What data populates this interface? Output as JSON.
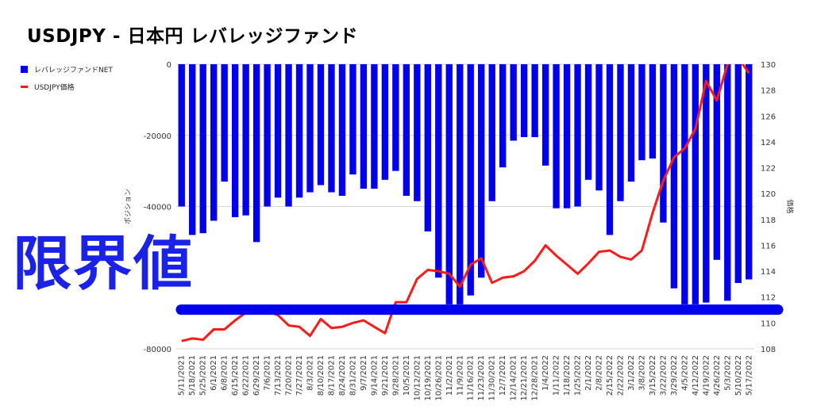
{
  "title": "USDJPY - 日本円 レバレッジファンド",
  "annotation": "限界値",
  "colors": {
    "net_bars": "#0000ee",
    "price_line": "#ff1a1a",
    "limit_line": "#0000ee"
  },
  "chart_data": {
    "type": "bar",
    "title": "USDJPY - 日本円 レバレッジファンド",
    "categories": [
      "5/11/2021",
      "5/18/2021",
      "5/25/2021",
      "6/1/2021",
      "6/8/2021",
      "6/15/2021",
      "6/22/2021",
      "6/29/2021",
      "7/6/2021",
      "7/13/2021",
      "7/20/2021",
      "7/27/2021",
      "8/3/2021",
      "8/10/2021",
      "8/17/2021",
      "8/24/2021",
      "8/31/2021",
      "9/7/2021",
      "9/14/2021",
      "9/21/2021",
      "9/28/2021",
      "10/5/2021",
      "10/12/2021",
      "10/19/2021",
      "10/26/2021",
      "11/2/2021",
      "11/9/2021",
      "11/16/2021",
      "11/23/2021",
      "11/30/2021",
      "12/7/2021",
      "12/14/2021",
      "12/21/2021",
      "12/28/2021",
      "1/4/2022",
      "1/11/2022",
      "1/18/2022",
      "1/25/2022",
      "2/1/2022",
      "2/8/2022",
      "2/15/2022",
      "2/22/2022",
      "3/1/2022",
      "3/8/2022",
      "3/15/2022",
      "3/22/2022",
      "3/29/2022",
      "4/5/2022",
      "4/12/2022",
      "4/19/2022",
      "4/26/2022",
      "5/3/2022",
      "5/10/2022",
      "5/17/2022"
    ],
    "series": [
      {
        "name": "レバレッジファンドNET",
        "axis": "left",
        "type": "bar",
        "values": [
          -40000,
          -48000,
          -47500,
          -44000,
          -33000,
          -43000,
          -42500,
          -50000,
          -40000,
          -37500,
          -40000,
          -37500,
          -36000,
          -34000,
          -36000,
          -37000,
          -31000,
          -35000,
          -35000,
          -32500,
          -30000,
          -37000,
          -38500,
          -47000,
          -60000,
          -67500,
          -67500,
          -65000,
          -60000,
          -38500,
          -29000,
          -21500,
          -20500,
          -20500,
          -28500,
          -40500,
          -40500,
          -40000,
          -32500,
          -35500,
          -48000,
          -38500,
          -33000,
          -27000,
          -26500,
          -44500,
          -63000,
          -67500,
          -67500,
          -67000,
          -55000,
          -66500,
          -61500,
          -60500
        ]
      },
      {
        "name": "USDJPY価格",
        "axis": "right",
        "type": "line",
        "values": [
          108.6,
          108.8,
          108.7,
          109.5,
          109.5,
          110.2,
          110.8,
          111.0,
          110.9,
          110.6,
          109.8,
          109.7,
          109.0,
          110.3,
          109.6,
          109.7,
          110.0,
          110.2,
          109.7,
          109.2,
          111.6,
          111.6,
          113.4,
          114.1,
          114.0,
          113.8,
          112.8,
          114.5,
          115.0,
          113.1,
          113.5,
          113.6,
          114.0,
          114.8,
          116.0,
          115.2,
          114.5,
          113.8,
          114.6,
          115.5,
          115.6,
          115.1,
          114.9,
          115.6,
          118.5,
          121.0,
          122.8,
          123.5,
          125.0,
          128.7,
          127.2,
          130.0,
          130.5,
          129.3
        ]
      }
    ],
    "limit_value": -69000,
    "y_left": {
      "label": "ポジション",
      "ylim": [
        -80000,
        0
      ],
      "ticks": [
        0,
        -20000,
        -40000,
        -80000
      ]
    },
    "y_right": {
      "label": "価格",
      "ylim": [
        108,
        130
      ],
      "ticks": [
        130,
        128,
        126,
        124,
        122,
        120,
        118,
        116,
        114,
        112,
        110,
        108
      ]
    },
    "legend": {
      "placement": "top-left",
      "entries": [
        "レバレッジファンドNET",
        "USDJPY価格"
      ]
    },
    "grid": true
  }
}
